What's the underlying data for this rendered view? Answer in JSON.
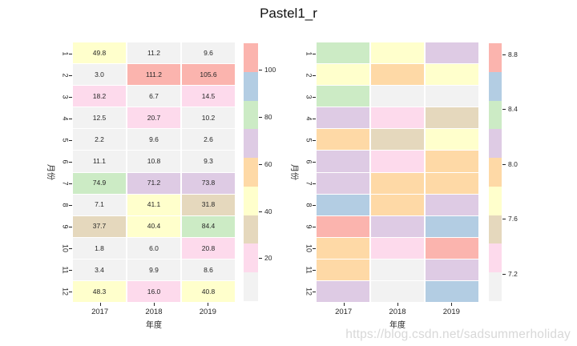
{
  "title": "Pastel1_r",
  "watermark": "https://blog.csdn.net/sadsummerholiday",
  "palette": {
    "colors": {
      "salmon": "#FBB4AE",
      "blue": "#B3CDE3",
      "green": "#CCEBC5",
      "purple": "#DECBE4",
      "orange": "#FED9A6",
      "yellow": "#FFFFCC",
      "beige": "#E5D8BD",
      "pink": "#FDDAEC",
      "gray": "#F2F2F2"
    },
    "order_low_to_high": [
      "gray",
      "pink",
      "beige",
      "yellow",
      "orange",
      "purple",
      "green",
      "blue",
      "salmon"
    ]
  },
  "chart_data": [
    {
      "type": "heatmap",
      "name": "annotated-heatmap",
      "xlabel": "年度",
      "ylabel": "月份",
      "x_ticks": [
        "2017",
        "2018",
        "2019"
      ],
      "y_ticks": [
        "1",
        "2",
        "3",
        "4",
        "5",
        "6",
        "7",
        "8",
        "9",
        "10",
        "11",
        "12"
      ],
      "annotated": true,
      "values": [
        [
          49.8,
          11.2,
          9.6
        ],
        [
          3.0,
          111.2,
          105.6
        ],
        [
          18.2,
          6.7,
          14.5
        ],
        [
          12.5,
          20.7,
          10.2
        ],
        [
          2.2,
          9.6,
          2.6
        ],
        [
          11.1,
          10.8,
          9.3
        ],
        [
          74.9,
          71.2,
          73.8
        ],
        [
          7.1,
          41.1,
          31.8
        ],
        [
          37.7,
          40.4,
          84.4
        ],
        [
          1.8,
          6.0,
          20.8
        ],
        [
          3.4,
          9.9,
          8.6
        ],
        [
          48.3,
          16.0,
          40.8
        ]
      ],
      "vmin": 1.8,
      "vmax": 111.2,
      "colorbar_ticks": [
        {
          "label": "100",
          "value": 100
        },
        {
          "label": "80",
          "value": 80
        },
        {
          "label": "60",
          "value": 60
        },
        {
          "label": "40",
          "value": 40
        },
        {
          "label": "20",
          "value": 20
        }
      ]
    },
    {
      "type": "heatmap",
      "name": "plain-heatmap",
      "xlabel": "年度",
      "ylabel": "月份",
      "x_ticks": [
        "2017",
        "2018",
        "2019"
      ],
      "y_ticks": [
        "1",
        "2",
        "3",
        "4",
        "5",
        "6",
        "7",
        "8",
        "9",
        "10",
        "11",
        "12"
      ],
      "annotated": false,
      "cell_colors": [
        [
          "green",
          "yellow",
          "purple"
        ],
        [
          "yellow",
          "orange",
          "yellow"
        ],
        [
          "green",
          "gray",
          "gray"
        ],
        [
          "purple",
          "pink",
          "beige"
        ],
        [
          "orange",
          "beige",
          "yellow"
        ],
        [
          "purple",
          "pink",
          "orange"
        ],
        [
          "purple",
          "orange",
          "orange"
        ],
        [
          "blue",
          "orange",
          "purple"
        ],
        [
          "salmon",
          "purple",
          "blue"
        ],
        [
          "orange",
          "pink",
          "salmon"
        ],
        [
          "orange",
          "gray",
          "purple"
        ],
        [
          "purple",
          "gray",
          "blue"
        ]
      ],
      "vmin": 7.0,
      "vmax": 8.88,
      "colorbar_ticks": [
        {
          "label": "8.8",
          "value": 8.8
        },
        {
          "label": "8.4",
          "value": 8.4
        },
        {
          "label": "8.0",
          "value": 8.0
        },
        {
          "label": "7.6",
          "value": 7.6
        },
        {
          "label": "7.2",
          "value": 7.2
        }
      ]
    }
  ]
}
